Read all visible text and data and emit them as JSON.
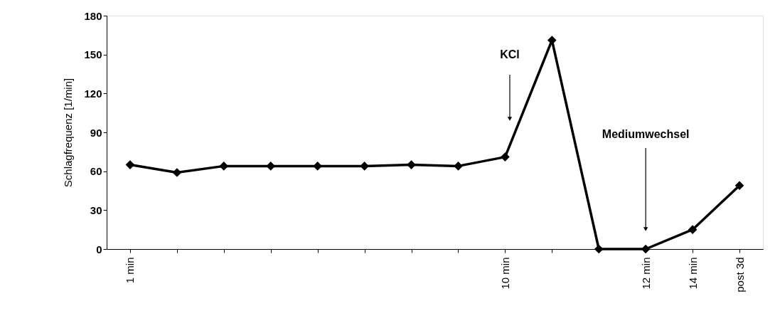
{
  "chart_data": {
    "type": "line",
    "ylabel": "Schlagfrequenz [1/min]",
    "categories": [
      "1 min",
      null,
      null,
      null,
      null,
      null,
      null,
      null,
      "10 min",
      null,
      null,
      "12 min",
      "14 min",
      "post 3d"
    ],
    "series": [
      {
        "color": "#000000",
        "values": [
          65,
          59,
          64,
          64,
          64,
          64,
          65,
          64,
          71,
          161,
          0,
          0,
          15,
          49
        ]
      }
    ],
    "ylim": [
      0,
      180
    ],
    "yticks": [
      0,
      30,
      60,
      90,
      120,
      150,
      180
    ],
    "grid": false,
    "marker": "diamond",
    "line_style": "solid",
    "annotations": [
      "KCl",
      "Mediumwechsel"
    ]
  }
}
